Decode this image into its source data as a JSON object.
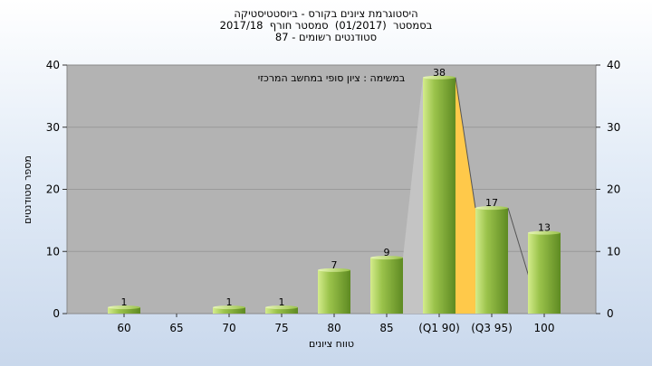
{
  "chart_data": {
    "type": "bar",
    "title_lines": [
      "היסטוגרמת ציונים בקורס - ביוסטטיסטיקה",
      "בסמסטר  (01/2017)  סמסטר חורף  2017/18",
      "סטודנטים רשומים - 87"
    ],
    "annotation": "במשימה : ציון סופי במחשב המרכזי",
    "xlabel": "טווח ציונים",
    "ylabel": "מספר סטודנטים",
    "categories": [
      "60",
      "65",
      "70",
      "75",
      "80",
      "85",
      "(Q1 90)",
      "(Q3 95)",
      "100"
    ],
    "values": [
      1,
      0,
      1,
      1,
      7,
      9,
      38,
      17,
      13
    ],
    "data_labels": [
      "1",
      "",
      "1",
      "1",
      "7",
      "9",
      "38",
      "17",
      "13"
    ],
    "ylim": [
      0,
      40
    ],
    "yticks": [
      "0",
      "10",
      "20",
      "30",
      "40"
    ],
    "grid": true,
    "colors": {
      "bar_light": "#d4ec8c",
      "bar_mid": "#9bc34b",
      "bar_dark": "#5e8a22",
      "plot_bg": "#b3b3b3",
      "iqr_fill": "#ffc94a"
    }
  }
}
